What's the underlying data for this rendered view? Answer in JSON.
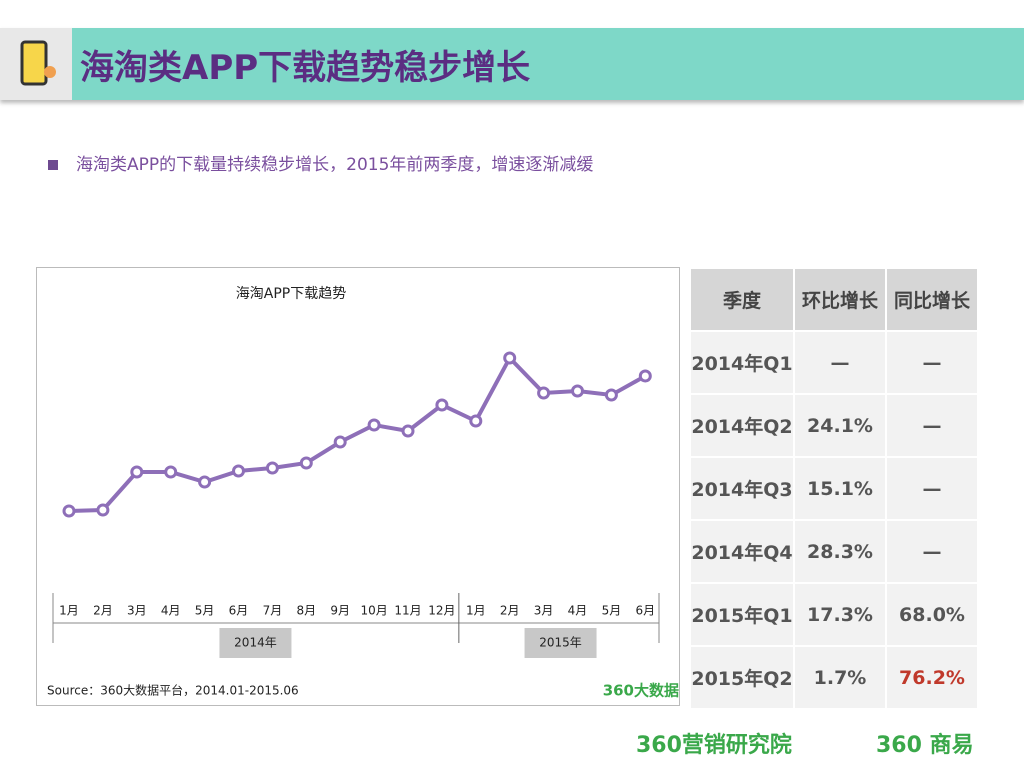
{
  "header": {
    "title": "海淘类APP下载趋势稳步增长"
  },
  "bullet": "海淘类APP的下载量持续稳步增长，2015年前两季度，增速逐渐减缓",
  "chart_data": {
    "type": "line",
    "title": "海淘APP下载趋势",
    "categories": [
      "1月",
      "2月",
      "3月",
      "4月",
      "5月",
      "6月",
      "7月",
      "8月",
      "9月",
      "10月",
      "11月",
      "12月",
      "1月",
      "2月",
      "3月",
      "4月",
      "5月",
      "6月"
    ],
    "groups": [
      {
        "label": "2014年",
        "count": 12
      },
      {
        "label": "2015年",
        "count": 6
      }
    ],
    "values": [
      50,
      51,
      89,
      89,
      79,
      90,
      93,
      98,
      119,
      136,
      130,
      156,
      140,
      203,
      168,
      170,
      166,
      185
    ],
    "color": "#8e6fb8",
    "ylim": [
      0,
      260
    ],
    "source": "Source：360大数据平台，2014.01-2015.06",
    "watermark": "360大数据"
  },
  "table": {
    "header": [
      "季度",
      "环比增长",
      "同比增长"
    ],
    "rows": [
      [
        "2014年Q1",
        "—",
        "—"
      ],
      [
        "2014年Q2",
        "24.1%",
        "—"
      ],
      [
        "2014年Q3",
        "15.1%",
        "—"
      ],
      [
        "2014年Q4",
        "28.3%",
        "—"
      ],
      [
        "2015年Q1",
        "17.3%",
        "68.0%"
      ],
      [
        "2015年Q2",
        "1.7%",
        "76.2%"
      ]
    ]
  },
  "footer": [
    "360营销研究院",
    "360 商易"
  ]
}
